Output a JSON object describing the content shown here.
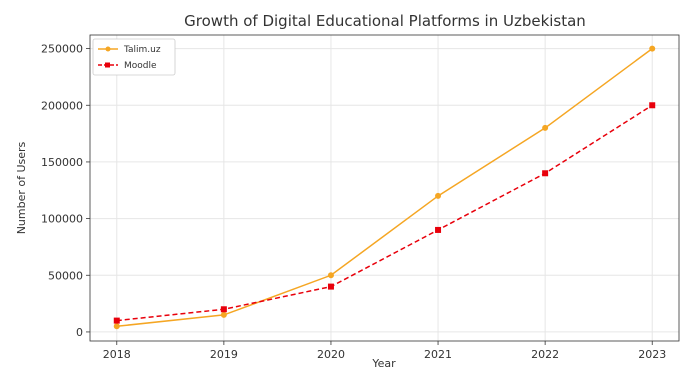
{
  "chart_data": {
    "type": "line",
    "title": "Growth of Digital Educational Platforms in Uzbekistan",
    "xlabel": "Year",
    "ylabel": "Number of Users",
    "x": [
      2018,
      2019,
      2020,
      2021,
      2022,
      2023
    ],
    "xlim": [
      2017.75,
      2023.25
    ],
    "ylim": [
      -8000,
      262000
    ],
    "yticks": [
      0,
      50000,
      100000,
      150000,
      200000,
      250000
    ],
    "grid": true,
    "legend": "top-left",
    "series": [
      {
        "name": "Talim.uz",
        "values": [
          5000,
          15000,
          50000,
          120000,
          180000,
          250000
        ],
        "color": "#f5a623",
        "dash": "solid",
        "marker": "circle"
      },
      {
        "name": "Moodle",
        "values": [
          10000,
          20000,
          40000,
          90000,
          140000,
          200000
        ],
        "color": "#e8000b",
        "dash": "dashed",
        "marker": "square"
      }
    ]
  }
}
